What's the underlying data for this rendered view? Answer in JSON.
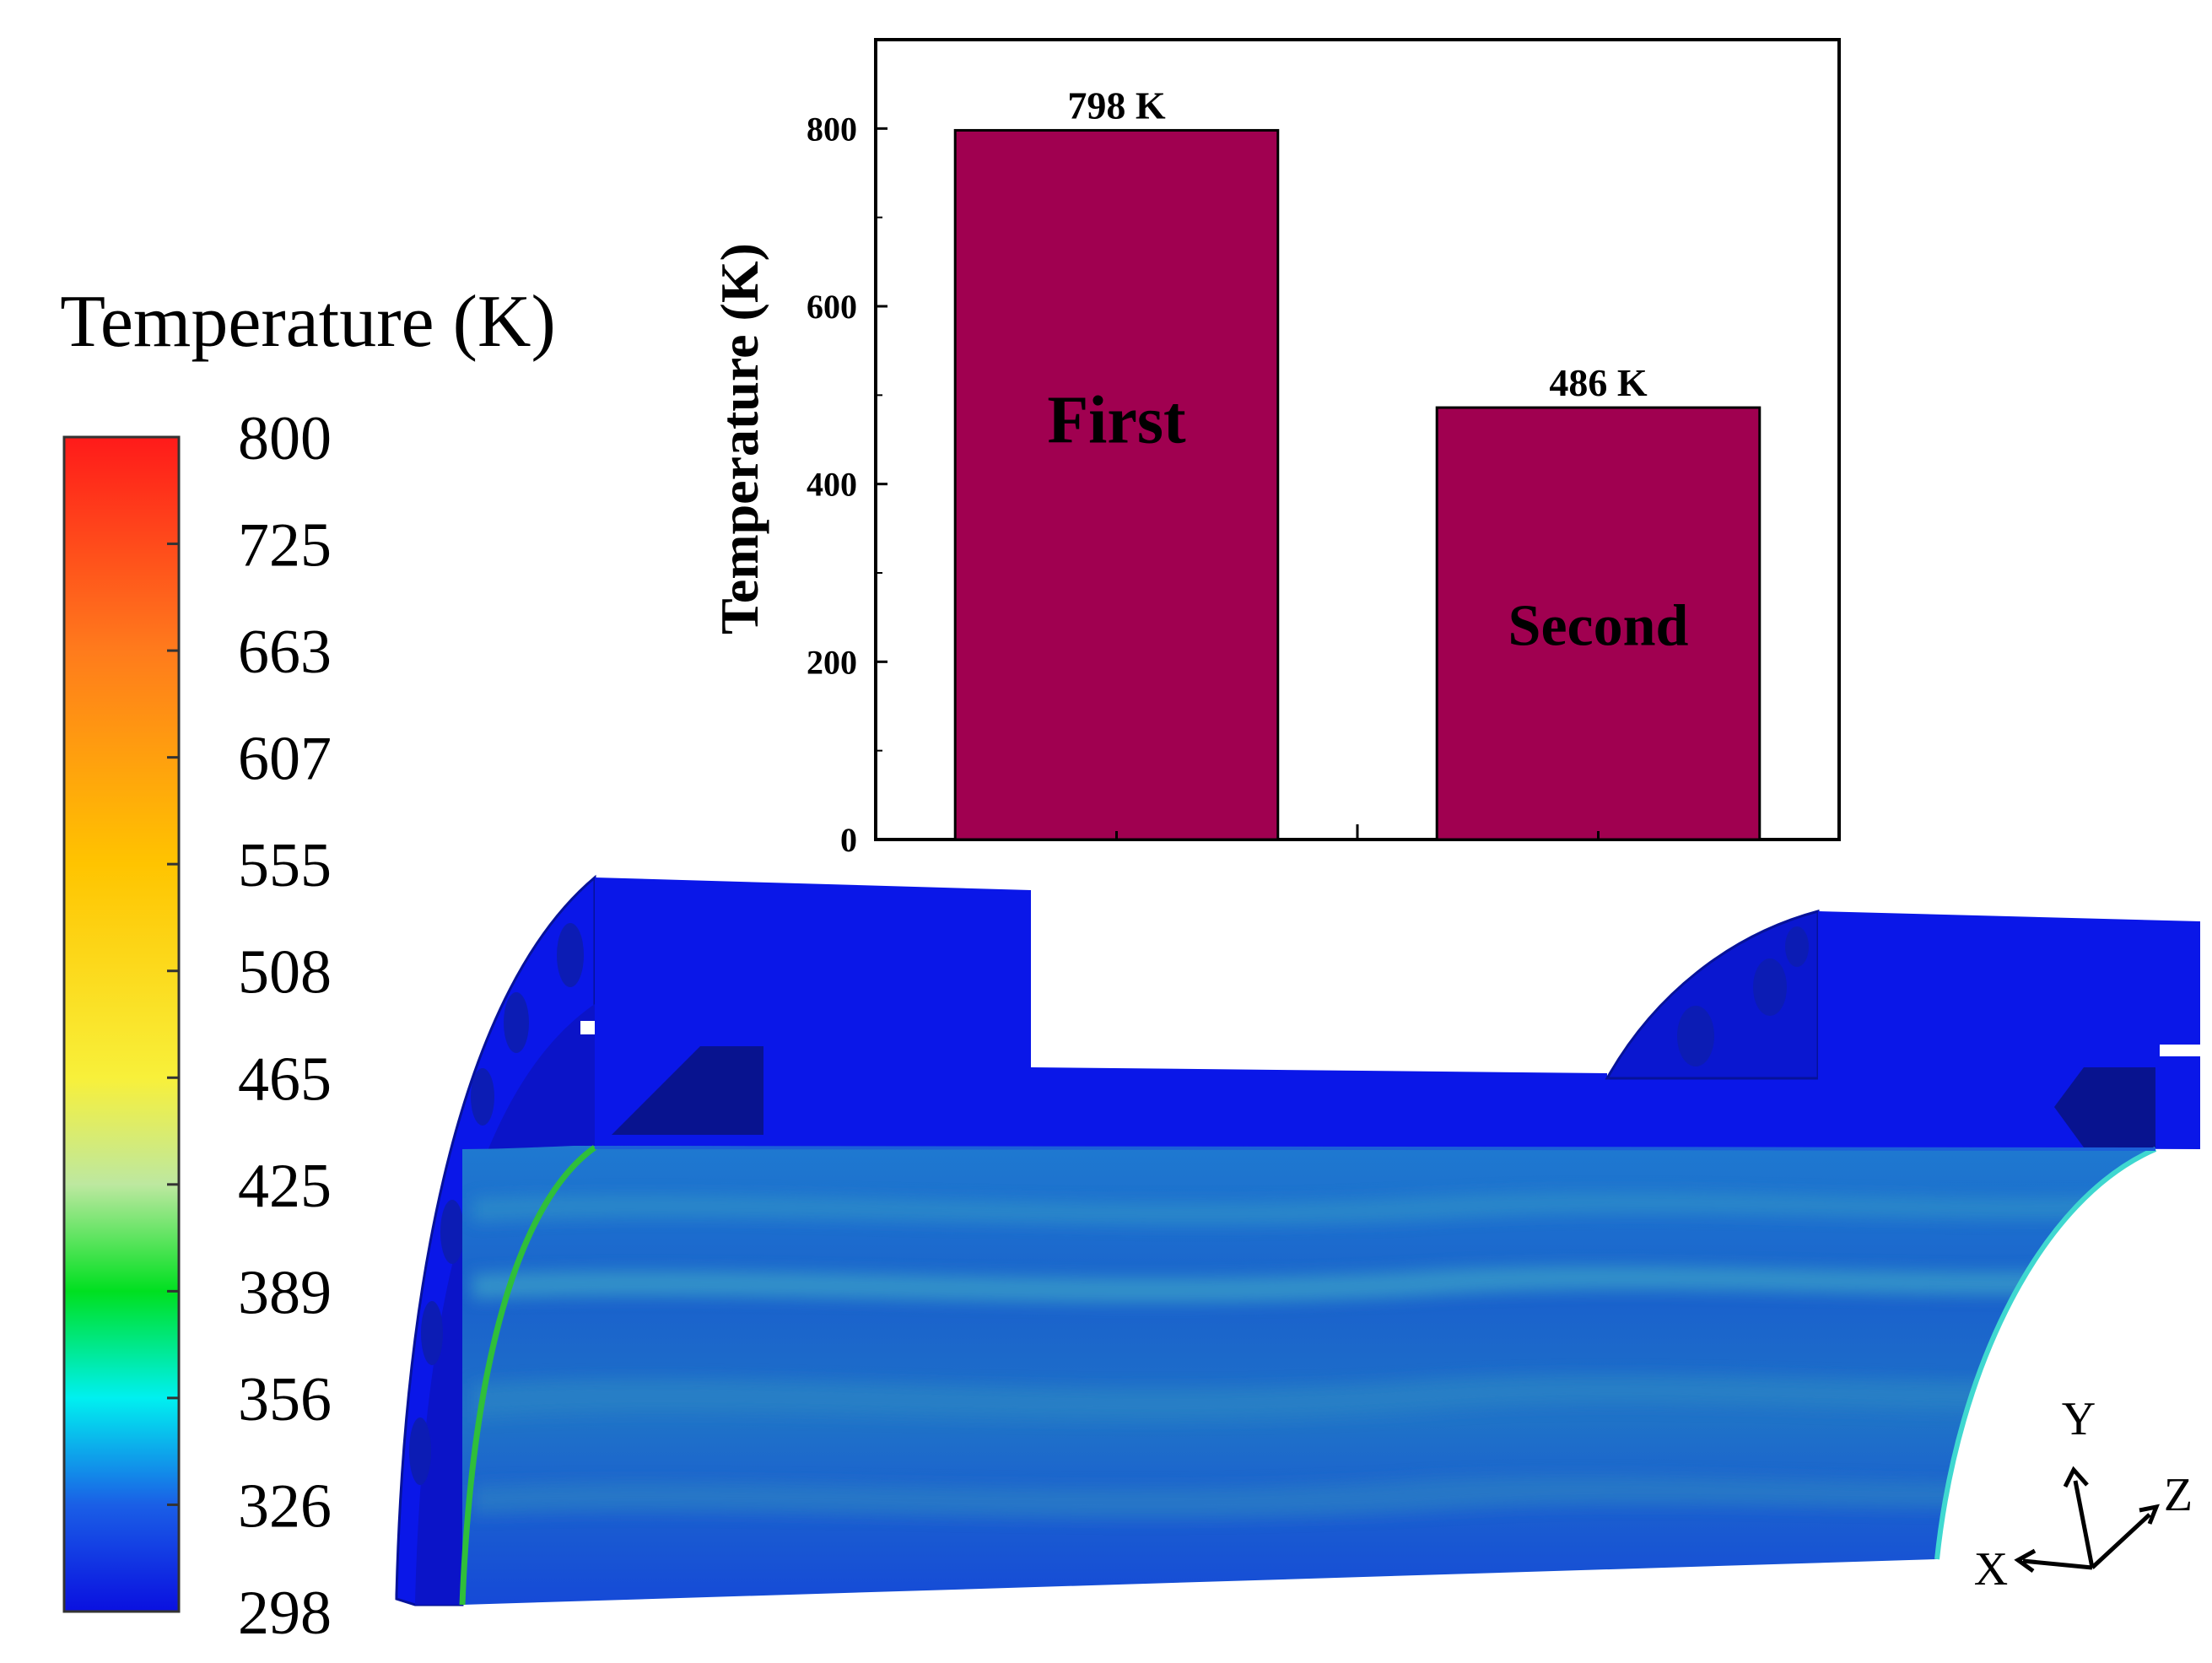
{
  "colorbar": {
    "title": "Temperature (K)",
    "ticks": [
      "800",
      "725",
      "663",
      "607",
      "555",
      "508",
      "465",
      "425",
      "389",
      "356",
      "326",
      "298"
    ],
    "stops": [
      {
        "t": 298,
        "color": "#0a10e0"
      },
      {
        "t": 326,
        "color": "#1a5fe6"
      },
      {
        "t": 356,
        "color": "#00f0f0"
      },
      {
        "t": 389,
        "color": "#00e020"
      },
      {
        "t": 425,
        "color": "#bde8a0"
      },
      {
        "t": 465,
        "color": "#f8f03a"
      },
      {
        "t": 555,
        "color": "#ffc400"
      },
      {
        "t": 663,
        "color": "#ff7b1c"
      },
      {
        "t": 800,
        "color": "#ff1a1a"
      }
    ]
  },
  "chart_data": {
    "type": "bar",
    "categories": [
      "First",
      "Second"
    ],
    "values": [
      798,
      486
    ],
    "data_labels": [
      "798 K",
      "486 K"
    ],
    "ylabel": "Temperature (K)",
    "ylim": [
      0,
      900
    ],
    "yticks": [
      "0",
      "200",
      "400",
      "600",
      "800"
    ],
    "bar_color": "#a00050",
    "grid": false
  },
  "axes_triad": {
    "x": "X",
    "y": "Y",
    "z": "Z"
  },
  "model_colors": {
    "solid": "#0a17e8",
    "dark": "#06129a",
    "inner_base": "#1750c8",
    "inner_streak": "#2f8fc8",
    "edge_green": "#2fbf3a",
    "edge_cyan": "#3fd8d0"
  }
}
